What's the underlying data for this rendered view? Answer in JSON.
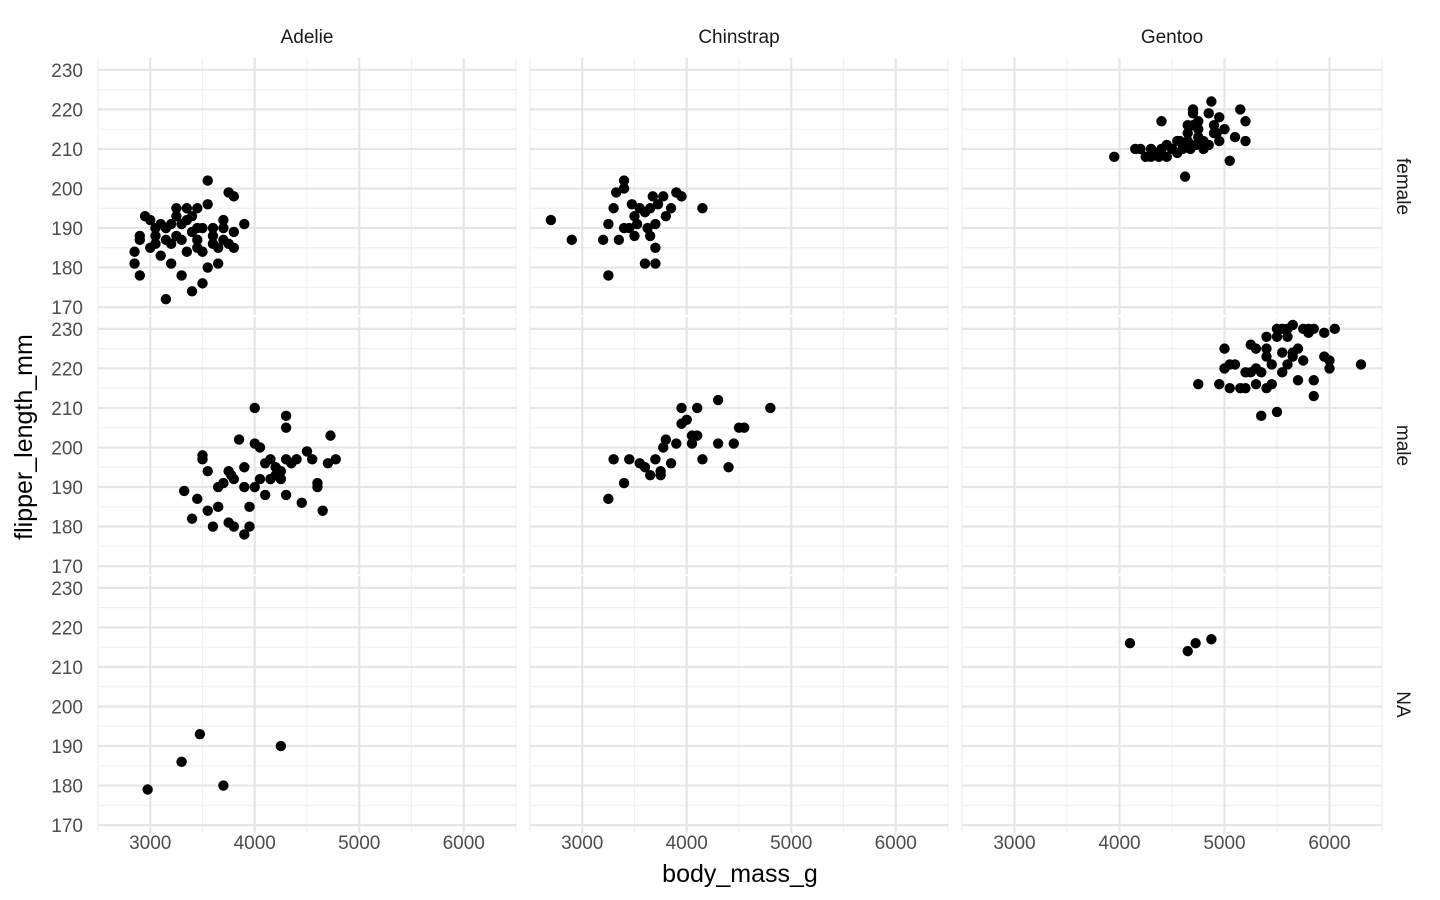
{
  "chart_data": {
    "type": "scatter",
    "facet": {
      "cols": [
        "Adelie",
        "Chinstrap",
        "Gentoo"
      ],
      "rows": [
        "female",
        "male",
        "NA"
      ]
    },
    "xlabel": "body_mass_g",
    "ylabel": "flipper_length_mm",
    "xlim": [
      2500,
      6500
    ],
    "ylim": [
      168,
      233
    ],
    "xticks": [
      3000,
      4000,
      5000,
      6000
    ],
    "yticks": [
      170,
      180,
      190,
      200,
      210,
      220,
      230
    ],
    "grid": true,
    "point_color": "#000000",
    "panels": [
      {
        "col": "Adelie",
        "row": "female",
        "points": [
          [
            2850,
            184
          ],
          [
            2850,
            181
          ],
          [
            2900,
            178
          ],
          [
            2900,
            188
          ],
          [
            2900,
            187
          ],
          [
            2950,
            193
          ],
          [
            3000,
            192
          ],
          [
            3000,
            185
          ],
          [
            3050,
            190
          ],
          [
            3050,
            188
          ],
          [
            3050,
            186
          ],
          [
            3100,
            183
          ],
          [
            3100,
            191
          ],
          [
            3150,
            187
          ],
          [
            3150,
            172
          ],
          [
            3200,
            181
          ],
          [
            3200,
            186
          ],
          [
            3200,
            191
          ],
          [
            3250,
            193
          ],
          [
            3250,
            195
          ],
          [
            3300,
            178
          ],
          [
            3300,
            191
          ],
          [
            3300,
            187
          ],
          [
            3350,
            195
          ],
          [
            3350,
            184
          ],
          [
            3400,
            193
          ],
          [
            3400,
            189
          ],
          [
            3400,
            174
          ],
          [
            3450,
            185
          ],
          [
            3450,
            187
          ],
          [
            3450,
            190
          ],
          [
            3450,
            195
          ],
          [
            3500,
            176
          ],
          [
            3500,
            190
          ],
          [
            3500,
            184
          ],
          [
            3550,
            202
          ],
          [
            3550,
            180
          ],
          [
            3550,
            196
          ],
          [
            3600,
            186
          ],
          [
            3600,
            190
          ],
          [
            3650,
            181
          ],
          [
            3650,
            185
          ],
          [
            3700,
            190
          ],
          [
            3700,
            187
          ],
          [
            3700,
            192
          ],
          [
            3750,
            199
          ],
          [
            3750,
            186
          ],
          [
            3800,
            198
          ],
          [
            3800,
            189
          ],
          [
            3800,
            185
          ],
          [
            3900,
            191
          ],
          [
            3150,
            190
          ],
          [
            3250,
            188
          ],
          [
            3350,
            192
          ],
          [
            3600,
            188
          ]
        ]
      },
      {
        "col": "Chinstrap",
        "row": "female",
        "points": [
          [
            2700,
            192
          ],
          [
            2900,
            187
          ],
          [
            3200,
            187
          ],
          [
            3250,
            178
          ],
          [
            3250,
            191
          ],
          [
            3300,
            195
          ],
          [
            3325,
            199
          ],
          [
            3350,
            187
          ],
          [
            3400,
            202
          ],
          [
            3400,
            200
          ],
          [
            3400,
            190
          ],
          [
            3450,
            190
          ],
          [
            3475,
            196
          ],
          [
            3500,
            188
          ],
          [
            3500,
            193
          ],
          [
            3525,
            191
          ],
          [
            3550,
            195
          ],
          [
            3600,
            181
          ],
          [
            3600,
            194
          ],
          [
            3625,
            190
          ],
          [
            3650,
            188
          ],
          [
            3650,
            195
          ],
          [
            3675,
            198
          ],
          [
            3700,
            181
          ],
          [
            3700,
            185
          ],
          [
            3700,
            191
          ],
          [
            3725,
            196
          ],
          [
            3775,
            198
          ],
          [
            3800,
            193
          ],
          [
            3850,
            195
          ],
          [
            3900,
            199
          ],
          [
            3950,
            198
          ],
          [
            4150,
            195
          ]
        ]
      },
      {
        "col": "Gentoo",
        "row": "female",
        "points": [
          [
            3950,
            208
          ],
          [
            4150,
            210
          ],
          [
            4200,
            210
          ],
          [
            4250,
            208
          ],
          [
            4300,
            208
          ],
          [
            4300,
            210
          ],
          [
            4350,
            209
          ],
          [
            4375,
            208
          ],
          [
            4400,
            217
          ],
          [
            4400,
            210
          ],
          [
            4450,
            208
          ],
          [
            4450,
            211
          ],
          [
            4500,
            210
          ],
          [
            4550,
            209
          ],
          [
            4575,
            212
          ],
          [
            4600,
            210
          ],
          [
            4625,
            203
          ],
          [
            4650,
            214
          ],
          [
            4650,
            212
          ],
          [
            4675,
            210
          ],
          [
            4700,
            220
          ],
          [
            4700,
            219
          ],
          [
            4700,
            216
          ],
          [
            4725,
            211
          ],
          [
            4750,
            213
          ],
          [
            4750,
            215
          ],
          [
            4800,
            210
          ],
          [
            4800,
            212
          ],
          [
            4850,
            219
          ],
          [
            4850,
            211
          ],
          [
            4875,
            222
          ],
          [
            4900,
            214
          ],
          [
            4900,
            216
          ],
          [
            4925,
            214
          ],
          [
            4950,
            218
          ],
          [
            4950,
            212
          ],
          [
            5000,
            215
          ],
          [
            5050,
            207
          ],
          [
            5100,
            213
          ],
          [
            5150,
            220
          ],
          [
            5200,
            217
          ],
          [
            5200,
            212
          ],
          [
            4550,
            212
          ],
          [
            4650,
            216
          ],
          [
            4750,
            217
          ]
        ]
      },
      {
        "col": "Adelie",
        "row": "male",
        "points": [
          [
            3325,
            189
          ],
          [
            3400,
            182
          ],
          [
            3450,
            187
          ],
          [
            3500,
            198
          ],
          [
            3500,
            197
          ],
          [
            3550,
            184
          ],
          [
            3550,
            194
          ],
          [
            3600,
            180
          ],
          [
            3650,
            185
          ],
          [
            3650,
            190
          ],
          [
            3700,
            191
          ],
          [
            3750,
            181
          ],
          [
            3750,
            194
          ],
          [
            3775,
            193
          ],
          [
            3800,
            180
          ],
          [
            3800,
            192
          ],
          [
            3850,
            202
          ],
          [
            3900,
            178
          ],
          [
            3900,
            195
          ],
          [
            3950,
            185
          ],
          [
            3950,
            180
          ],
          [
            4000,
            190
          ],
          [
            4000,
            210
          ],
          [
            4000,
            201
          ],
          [
            4050,
            200
          ],
          [
            4100,
            196
          ],
          [
            4150,
            197
          ],
          [
            4150,
            192
          ],
          [
            4200,
            195
          ],
          [
            4250,
            192
          ],
          [
            4250,
            194
          ],
          [
            4300,
            208
          ],
          [
            4300,
            205
          ],
          [
            4300,
            188
          ],
          [
            4350,
            196
          ],
          [
            4400,
            197
          ],
          [
            4450,
            186
          ],
          [
            4500,
            199
          ],
          [
            4550,
            197
          ],
          [
            4600,
            191
          ],
          [
            4650,
            184
          ],
          [
            4700,
            196
          ],
          [
            4725,
            203
          ],
          [
            4775,
            197
          ],
          [
            3900,
            190
          ],
          [
            4050,
            192
          ],
          [
            4100,
            188
          ],
          [
            4200,
            193
          ],
          [
            4300,
            197
          ],
          [
            4600,
            190
          ]
        ]
      },
      {
        "col": "Chinstrap",
        "row": "male",
        "points": [
          [
            3250,
            187
          ],
          [
            3300,
            197
          ],
          [
            3400,
            191
          ],
          [
            3450,
            197
          ],
          [
            3550,
            196
          ],
          [
            3600,
            195
          ],
          [
            3650,
            193
          ],
          [
            3700,
            197
          ],
          [
            3750,
            193
          ],
          [
            3775,
            200
          ],
          [
            3800,
            202
          ],
          [
            3850,
            196
          ],
          [
            3900,
            201
          ],
          [
            3950,
            210
          ],
          [
            3950,
            206
          ],
          [
            4000,
            207
          ],
          [
            4050,
            201
          ],
          [
            4050,
            203
          ],
          [
            4100,
            210
          ],
          [
            4150,
            197
          ],
          [
            4300,
            201
          ],
          [
            4300,
            212
          ],
          [
            4400,
            195
          ],
          [
            4450,
            201
          ],
          [
            4500,
            205
          ],
          [
            4550,
            205
          ],
          [
            4800,
            210
          ],
          [
            3750,
            194
          ],
          [
            4100,
            203
          ]
        ]
      },
      {
        "col": "Gentoo",
        "row": "male",
        "points": [
          [
            4750,
            216
          ],
          [
            4950,
            216
          ],
          [
            5000,
            225
          ],
          [
            5000,
            220
          ],
          [
            5050,
            221
          ],
          [
            5050,
            215
          ],
          [
            5100,
            221
          ],
          [
            5150,
            215
          ],
          [
            5200,
            215
          ],
          [
            5250,
            226
          ],
          [
            5250,
            219
          ],
          [
            5300,
            225
          ],
          [
            5300,
            220
          ],
          [
            5300,
            216
          ],
          [
            5350,
            208
          ],
          [
            5350,
            219
          ],
          [
            5400,
            223
          ],
          [
            5400,
            228
          ],
          [
            5400,
            215
          ],
          [
            5450,
            216
          ],
          [
            5450,
            221
          ],
          [
            5500,
            209
          ],
          [
            5500,
            228
          ],
          [
            5500,
            230
          ],
          [
            5550,
            230
          ],
          [
            5550,
            219
          ],
          [
            5550,
            224
          ],
          [
            5600,
            228
          ],
          [
            5600,
            230
          ],
          [
            5650,
            223
          ],
          [
            5650,
            231
          ],
          [
            5700,
            225
          ],
          [
            5700,
            217
          ],
          [
            5750,
            222
          ],
          [
            5750,
            230
          ],
          [
            5800,
            230
          ],
          [
            5800,
            229
          ],
          [
            5850,
            213
          ],
          [
            5850,
            217
          ],
          [
            5950,
            229
          ],
          [
            5950,
            223
          ],
          [
            6000,
            220
          ],
          [
            6000,
            222
          ],
          [
            6050,
            230
          ],
          [
            6300,
            221
          ],
          [
            5200,
            219
          ],
          [
            5600,
            221
          ],
          [
            5400,
            225
          ],
          [
            5650,
            224
          ],
          [
            5850,
            230
          ]
        ]
      },
      {
        "col": "Adelie",
        "row": "NA",
        "points": [
          [
            2975,
            179
          ],
          [
            3300,
            186
          ],
          [
            3475,
            193
          ],
          [
            3700,
            180
          ],
          [
            4250,
            190
          ]
        ]
      },
      {
        "col": "Chinstrap",
        "row": "NA",
        "points": []
      },
      {
        "col": "Gentoo",
        "row": "NA",
        "points": [
          [
            4100,
            216
          ],
          [
            4650,
            214
          ],
          [
            4725,
            216
          ],
          [
            4875,
            217
          ]
        ]
      }
    ]
  }
}
